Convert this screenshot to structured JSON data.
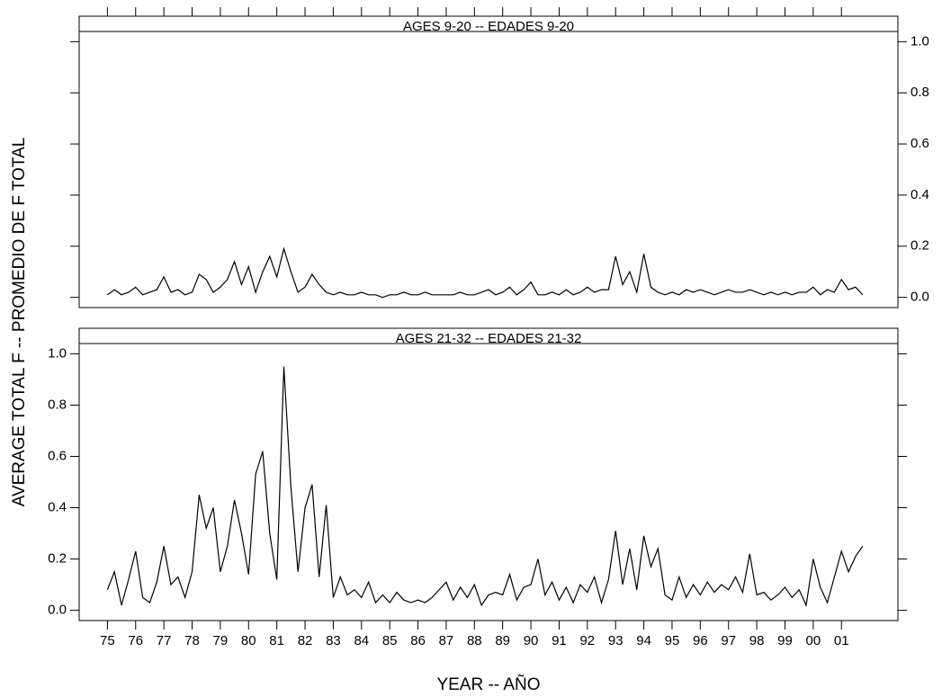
{
  "axis_labels": {
    "x": "YEAR -- AÑO",
    "y": "AVERAGE TOTAL F -- PROMEDIO DE F TOTAL"
  },
  "chart_data": [
    {
      "type": "line",
      "title": "AGES 9-20 -- EDADES 9-20",
      "color": "#000000",
      "x": [
        1975,
        1975.25,
        1975.5,
        1975.75,
        1976,
        1976.25,
        1976.5,
        1976.75,
        1977,
        1977.25,
        1977.5,
        1977.75,
        1978,
        1978.25,
        1978.5,
        1978.75,
        1979,
        1979.25,
        1979.5,
        1979.75,
        1980,
        1980.25,
        1980.5,
        1980.75,
        1981,
        1981.25,
        1981.5,
        1981.75,
        1982,
        1982.25,
        1982.5,
        1982.75,
        1983,
        1983.25,
        1983.5,
        1983.75,
        1984,
        1984.25,
        1984.5,
        1984.75,
        1985,
        1985.25,
        1985.5,
        1985.75,
        1986,
        1986.25,
        1986.5,
        1986.75,
        1987,
        1987.25,
        1987.5,
        1987.75,
        1988,
        1988.25,
        1988.5,
        1988.75,
        1989,
        1989.25,
        1989.5,
        1989.75,
        1990,
        1990.25,
        1990.5,
        1990.75,
        1991,
        1991.25,
        1991.5,
        1991.75,
        1992,
        1992.25,
        1992.5,
        1992.75,
        1993,
        1993.25,
        1993.5,
        1993.75,
        1994,
        1994.25,
        1994.5,
        1994.75,
        1995,
        1995.25,
        1995.5,
        1995.75,
        1996,
        1996.25,
        1996.5,
        1996.75,
        1997,
        1997.25,
        1997.5,
        1997.75,
        1998,
        1998.25,
        1998.5,
        1998.75,
        1999,
        1999.25,
        1999.5,
        1999.75,
        2000,
        2000.25,
        2000.5,
        2000.75,
        2001,
        2001.25,
        2001.5,
        2001.75
      ],
      "values": [
        0.01,
        0.03,
        0.01,
        0.02,
        0.04,
        0.01,
        0.02,
        0.03,
        0.08,
        0.02,
        0.03,
        0.01,
        0.02,
        0.09,
        0.07,
        0.02,
        0.04,
        0.07,
        0.14,
        0.05,
        0.12,
        0.02,
        0.1,
        0.16,
        0.08,
        0.19,
        0.1,
        0.02,
        0.04,
        0.09,
        0.05,
        0.02,
        0.01,
        0.02,
        0.01,
        0.01,
        0.02,
        0.01,
        0.01,
        0.0,
        0.01,
        0.01,
        0.02,
        0.01,
        0.01,
        0.02,
        0.01,
        0.01,
        0.01,
        0.01,
        0.02,
        0.01,
        0.01,
        0.02,
        0.03,
        0.01,
        0.02,
        0.04,
        0.01,
        0.03,
        0.06,
        0.01,
        0.01,
        0.02,
        0.01,
        0.03,
        0.01,
        0.02,
        0.04,
        0.02,
        0.03,
        0.03,
        0.16,
        0.05,
        0.1,
        0.02,
        0.17,
        0.04,
        0.02,
        0.01,
        0.02,
        0.01,
        0.03,
        0.02,
        0.03,
        0.02,
        0.01,
        0.02,
        0.03,
        0.02,
        0.02,
        0.03,
        0.02,
        0.01,
        0.02,
        0.01,
        0.02,
        0.01,
        0.02,
        0.02,
        0.04,
        0.01,
        0.03,
        0.02,
        0.07,
        0.03,
        0.04,
        0.01
      ],
      "xlim": [
        1974,
        2003
      ],
      "ylim": [
        -0.04,
        1.04
      ],
      "yticks": [
        {
          "value": 0,
          "label": "0.0"
        },
        {
          "value": 0.2,
          "label": "0.2"
        },
        {
          "value": 0.4,
          "label": "0.4"
        },
        {
          "value": 0.6,
          "label": "0.6"
        },
        {
          "value": 0.8,
          "label": "0.8"
        },
        {
          "value": 1,
          "label": "1.0"
        }
      ]
    },
    {
      "type": "line",
      "title": "AGES 21-32 -- EDADES 21-32",
      "color": "#000000",
      "x": [
        1975,
        1975.25,
        1975.5,
        1975.75,
        1976,
        1976.25,
        1976.5,
        1976.75,
        1977,
        1977.25,
        1977.5,
        1977.75,
        1978,
        1978.25,
        1978.5,
        1978.75,
        1979,
        1979.25,
        1979.5,
        1979.75,
        1980,
        1980.25,
        1980.5,
        1980.75,
        1981,
        1981.25,
        1981.5,
        1981.75,
        1982,
        1982.25,
        1982.5,
        1982.75,
        1983,
        1983.25,
        1983.5,
        1983.75,
        1984,
        1984.25,
        1984.5,
        1984.75,
        1985,
        1985.25,
        1985.5,
        1985.75,
        1986,
        1986.25,
        1986.5,
        1986.75,
        1987,
        1987.25,
        1987.5,
        1987.75,
        1988,
        1988.25,
        1988.5,
        1988.75,
        1989,
        1989.25,
        1989.5,
        1989.75,
        1990,
        1990.25,
        1990.5,
        1990.75,
        1991,
        1991.25,
        1991.5,
        1991.75,
        1992,
        1992.25,
        1992.5,
        1992.75,
        1993,
        1993.25,
        1993.5,
        1993.75,
        1994,
        1994.25,
        1994.5,
        1994.75,
        1995,
        1995.25,
        1995.5,
        1995.75,
        1996,
        1996.25,
        1996.5,
        1996.75,
        1997,
        1997.25,
        1997.5,
        1997.75,
        1998,
        1998.25,
        1998.5,
        1998.75,
        1999,
        1999.25,
        1999.5,
        1999.75,
        2000,
        2000.25,
        2000.5,
        2000.75,
        2001,
        2001.25,
        2001.5,
        2001.75
      ],
      "values": [
        0.08,
        0.15,
        0.02,
        0.12,
        0.23,
        0.05,
        0.03,
        0.11,
        0.25,
        0.1,
        0.13,
        0.05,
        0.15,
        0.45,
        0.32,
        0.4,
        0.15,
        0.25,
        0.43,
        0.3,
        0.14,
        0.53,
        0.62,
        0.3,
        0.12,
        0.95,
        0.48,
        0.15,
        0.4,
        0.49,
        0.13,
        0.41,
        0.05,
        0.13,
        0.06,
        0.08,
        0.05,
        0.11,
        0.03,
        0.06,
        0.03,
        0.07,
        0.04,
        0.03,
        0.04,
        0.03,
        0.05,
        0.08,
        0.11,
        0.04,
        0.09,
        0.05,
        0.1,
        0.02,
        0.06,
        0.07,
        0.06,
        0.14,
        0.04,
        0.09,
        0.1,
        0.2,
        0.06,
        0.11,
        0.04,
        0.09,
        0.03,
        0.1,
        0.07,
        0.13,
        0.03,
        0.12,
        0.31,
        0.1,
        0.24,
        0.08,
        0.29,
        0.17,
        0.24,
        0.06,
        0.04,
        0.13,
        0.05,
        0.1,
        0.06,
        0.11,
        0.07,
        0.1,
        0.08,
        0.13,
        0.07,
        0.22,
        0.06,
        0.07,
        0.04,
        0.06,
        0.09,
        0.05,
        0.08,
        0.02,
        0.2,
        0.09,
        0.03,
        0.13,
        0.23,
        0.15,
        0.21,
        0.25
      ],
      "xlim": [
        1974,
        2003
      ],
      "ylim": [
        -0.04,
        1.04
      ],
      "xticks": [
        {
          "value": 1975,
          "label": "75"
        },
        {
          "value": 1976,
          "label": "76"
        },
        {
          "value": 1977,
          "label": "77"
        },
        {
          "value": 1978,
          "label": "78"
        },
        {
          "value": 1979,
          "label": "79"
        },
        {
          "value": 1980,
          "label": "80"
        },
        {
          "value": 1981,
          "label": "81"
        },
        {
          "value": 1982,
          "label": "82"
        },
        {
          "value": 1983,
          "label": "83"
        },
        {
          "value": 1984,
          "label": "84"
        },
        {
          "value": 1985,
          "label": "85"
        },
        {
          "value": 1986,
          "label": "86"
        },
        {
          "value": 1987,
          "label": "87"
        },
        {
          "value": 1988,
          "label": "88"
        },
        {
          "value": 1989,
          "label": "89"
        },
        {
          "value": 1990,
          "label": "90"
        },
        {
          "value": 1991,
          "label": "91"
        },
        {
          "value": 1992,
          "label": "92"
        },
        {
          "value": 1993,
          "label": "93"
        },
        {
          "value": 1994,
          "label": "94"
        },
        {
          "value": 1995,
          "label": "95"
        },
        {
          "value": 1996,
          "label": "96"
        },
        {
          "value": 1997,
          "label": "97"
        },
        {
          "value": 1998,
          "label": "98"
        },
        {
          "value": 1999,
          "label": "99"
        },
        {
          "value": 2000,
          "label": "00"
        },
        {
          "value": 2001,
          "label": "01"
        }
      ],
      "yticks": [
        {
          "value": 0,
          "label": "0.0"
        },
        {
          "value": 0.2,
          "label": "0.2"
        },
        {
          "value": 0.4,
          "label": "0.4"
        },
        {
          "value": 0.6,
          "label": "0.6"
        },
        {
          "value": 0.8,
          "label": "0.8"
        },
        {
          "value": 1,
          "label": "1.0"
        }
      ]
    }
  ]
}
